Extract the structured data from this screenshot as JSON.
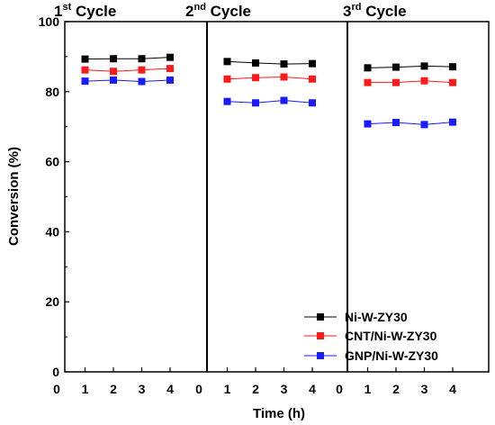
{
  "chart_data": {
    "type": "line",
    "panels": [
      {
        "title_num": "1",
        "title_sup": "st",
        "title_rest": " Cycle",
        "x": [
          0,
          1,
          2,
          3,
          4
        ]
      },
      {
        "title_num": "2",
        "title_sup": "nd",
        "title_rest": " Cycle",
        "x": [
          0,
          1,
          2,
          3,
          4
        ]
      },
      {
        "title_num": "3",
        "title_sup": "rd",
        "title_rest": " Cycle",
        "x": [
          0,
          1,
          2,
          3,
          4
        ]
      }
    ],
    "x_points": [
      1,
      2,
      3,
      4
    ],
    "xlabel": "Time (h)",
    "ylabel": "Conversion (%)",
    "ylim": [
      0,
      100
    ],
    "yticks": [
      0,
      20,
      40,
      60,
      80,
      100
    ],
    "series": [
      {
        "name": "Ni-W-ZY30",
        "color": "#000000",
        "values": [
          [
            89.3,
            89.4,
            89.4,
            89.8
          ],
          [
            88.6,
            88.2,
            87.9,
            88.0
          ],
          [
            86.8,
            87.0,
            87.3,
            87.1
          ]
        ]
      },
      {
        "name": "CNT/Ni-W-ZY30",
        "color": "#ff1a1a",
        "values": [
          [
            86.2,
            85.8,
            86.2,
            86.6
          ],
          [
            83.6,
            84.0,
            84.2,
            83.6
          ],
          [
            82.6,
            82.6,
            83.1,
            82.6
          ]
        ]
      },
      {
        "name": "GNP/Ni-W-ZY30",
        "color": "#1a1aff",
        "values": [
          [
            83.0,
            83.3,
            82.9,
            83.3
          ],
          [
            77.2,
            76.8,
            77.5,
            76.8
          ],
          [
            70.8,
            71.2,
            70.6,
            71.3
          ]
        ]
      }
    ],
    "legend_position": "bottom-right"
  }
}
